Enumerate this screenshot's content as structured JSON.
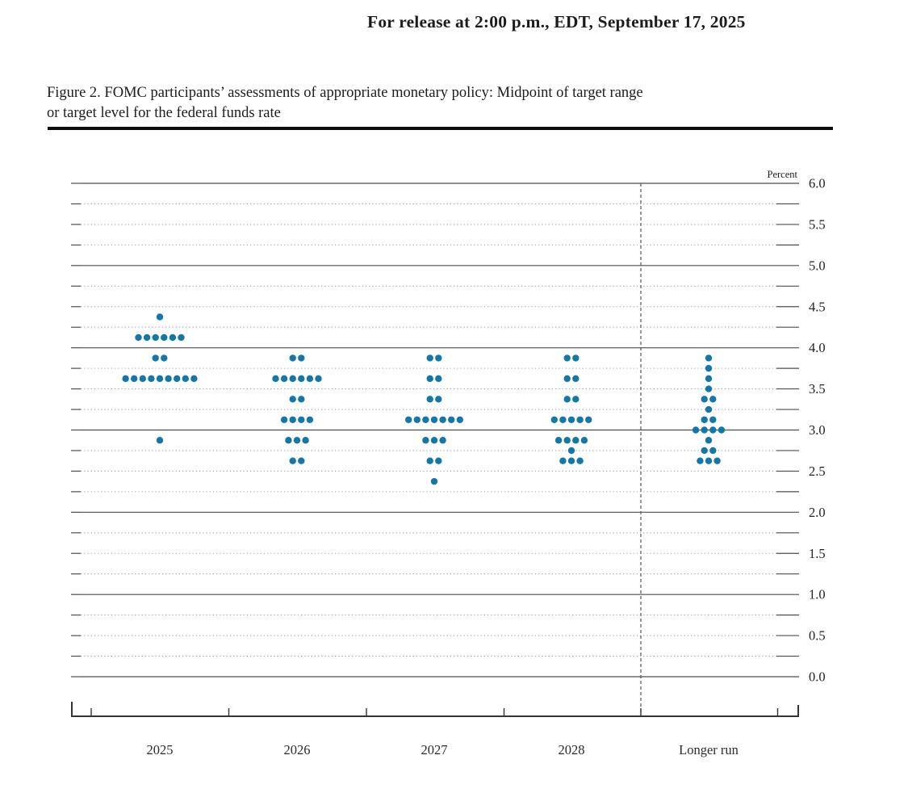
{
  "page": {
    "release_line": "For release at 2:00 p.m., EDT, September 17, 2025",
    "title_line1": "Figure 2. FOMC participants’ assessments of appropriate monetary policy: Midpoint of target range",
    "title_line2": "or target level for the federal funds rate"
  },
  "chart_data": {
    "type": "scatter",
    "subtype": "fomc-dot-plot",
    "title": "Figure 2. FOMC participants’ assessments of appropriate monetary policy: Midpoint of target range or target level for the federal funds rate",
    "ylabel": "Percent",
    "ylim": [
      0.0,
      6.0
    ],
    "grid_step": 0.25,
    "y_tick_labels": [
      "6.0",
      "5.5",
      "5.0",
      "4.5",
      "4.0",
      "3.5",
      "3.0",
      "2.5",
      "2.0",
      "1.5",
      "1.0",
      "0.5",
      "0.0"
    ],
    "categories": [
      "2025",
      "2026",
      "2027",
      "2028",
      "Longer run"
    ],
    "separator_between": [
      "2028",
      "Longer run"
    ],
    "series": [
      {
        "name": "2025",
        "dots": [
          {
            "rate": 4.375,
            "count": 1
          },
          {
            "rate": 4.125,
            "count": 6
          },
          {
            "rate": 3.875,
            "count": 2
          },
          {
            "rate": 3.625,
            "count": 9
          },
          {
            "rate": 2.875,
            "count": 1
          }
        ]
      },
      {
        "name": "2026",
        "dots": [
          {
            "rate": 3.875,
            "count": 2
          },
          {
            "rate": 3.625,
            "count": 6
          },
          {
            "rate": 3.375,
            "count": 2
          },
          {
            "rate": 3.125,
            "count": 4
          },
          {
            "rate": 2.875,
            "count": 3
          },
          {
            "rate": 2.625,
            "count": 2
          }
        ]
      },
      {
        "name": "2027",
        "dots": [
          {
            "rate": 3.875,
            "count": 2
          },
          {
            "rate": 3.625,
            "count": 2
          },
          {
            "rate": 3.375,
            "count": 2
          },
          {
            "rate": 3.125,
            "count": 7
          },
          {
            "rate": 2.875,
            "count": 3
          },
          {
            "rate": 2.625,
            "count": 2
          },
          {
            "rate": 2.375,
            "count": 1
          }
        ]
      },
      {
        "name": "2028",
        "dots": [
          {
            "rate": 3.875,
            "count": 2
          },
          {
            "rate": 3.625,
            "count": 2
          },
          {
            "rate": 3.375,
            "count": 2
          },
          {
            "rate": 3.125,
            "count": 5
          },
          {
            "rate": 2.875,
            "count": 4
          },
          {
            "rate": 2.75,
            "count": 1
          },
          {
            "rate": 2.625,
            "count": 3
          }
        ]
      },
      {
        "name": "Longer run",
        "dots": [
          {
            "rate": 3.875,
            "count": 1
          },
          {
            "rate": 3.75,
            "count": 1
          },
          {
            "rate": 3.625,
            "count": 1
          },
          {
            "rate": 3.5,
            "count": 1
          },
          {
            "rate": 3.375,
            "count": 2
          },
          {
            "rate": 3.25,
            "count": 1
          },
          {
            "rate": 3.125,
            "count": 2
          },
          {
            "rate": 3.0,
            "count": 4
          },
          {
            "rate": 2.875,
            "count": 1
          },
          {
            "rate": 2.75,
            "count": 2
          },
          {
            "rate": 2.625,
            "count": 3
          }
        ]
      }
    ],
    "legend_position": "none",
    "grid": true
  },
  "colors": {
    "dot": "#1377a9",
    "grid_major": "#4d4d4d",
    "grid_minor": "#a6a6a6",
    "axis": "#333333",
    "text": "#222222"
  }
}
